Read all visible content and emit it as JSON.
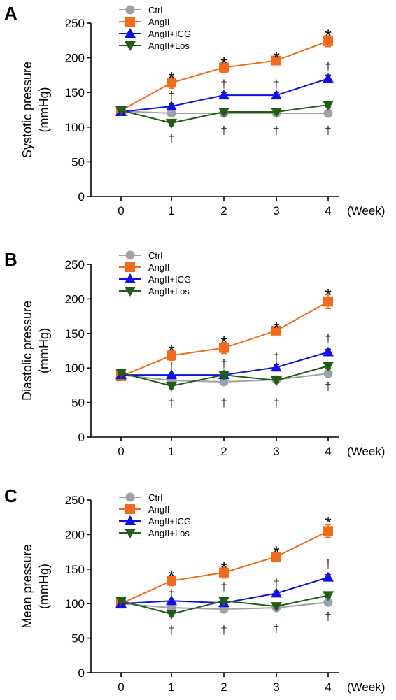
{
  "chart_data": [
    {
      "type": "line",
      "panel_label": "A",
      "xlabel": "(Week)",
      "ylabel_lines": [
        "Systotic pressure",
        "(mmHg)"
      ],
      "ylim": [
        0,
        250
      ],
      "yticks": [
        0,
        50,
        100,
        150,
        200,
        250
      ],
      "x": [
        0,
        1,
        2,
        3,
        4
      ],
      "series": [
        {
          "name": "Ctrl",
          "color": "#a0a0a8",
          "marker": "circle",
          "values": [
            123,
            120,
            120,
            120,
            120
          ],
          "error": [
            4,
            3,
            3,
            3,
            3
          ]
        },
        {
          "name": "AngII",
          "color": "#f26b1d",
          "marker": "square",
          "values": [
            124,
            164,
            186,
            196,
            224
          ],
          "error": [
            4,
            8,
            7,
            5,
            8
          ]
        },
        {
          "name": "AngII+ICG",
          "color": "#1010e8",
          "marker": "triangle-up",
          "values": [
            122,
            130,
            146,
            146,
            170
          ],
          "error": [
            3,
            4,
            4,
            4,
            5
          ]
        },
        {
          "name": "AngII+Los",
          "color": "#1f5e14",
          "marker": "triangle-down",
          "values": [
            124,
            106,
            122,
            122,
            132
          ],
          "error": [
            3,
            4,
            3,
            3,
            3
          ]
        }
      ],
      "annotations": [
        {
          "text": "*",
          "x": 1,
          "y": 177
        },
        {
          "text": "*",
          "x": 2,
          "y": 198
        },
        {
          "text": "*",
          "x": 3,
          "y": 206
        },
        {
          "text": "*",
          "x": 4,
          "y": 238
        },
        {
          "text": "†",
          "x": 1,
          "y": 146
        },
        {
          "text": "†",
          "x": 2,
          "y": 163
        },
        {
          "text": "†",
          "x": 3,
          "y": 163
        },
        {
          "text": "†",
          "x": 4,
          "y": 188
        },
        {
          "text": "†",
          "x": 1,
          "y": 84
        },
        {
          "text": "†",
          "x": 2,
          "y": 96
        },
        {
          "text": "†",
          "x": 3,
          "y": 96
        },
        {
          "text": "†",
          "x": 4,
          "y": 96
        }
      ]
    },
    {
      "type": "line",
      "panel_label": "B",
      "xlabel": "(Week)",
      "ylabel_lines": [
        "Diastolic pressure",
        "(mmHg)"
      ],
      "ylim": [
        0,
        250
      ],
      "yticks": [
        0,
        50,
        100,
        150,
        200,
        250
      ],
      "x": [
        0,
        1,
        2,
        3,
        4
      ],
      "series": [
        {
          "name": "Ctrl",
          "color": "#a0a0a8",
          "marker": "circle",
          "values": [
            90,
            82,
            80,
            83,
            92
          ],
          "error": [
            3,
            3,
            3,
            3,
            3
          ]
        },
        {
          "name": "AngII",
          "color": "#f26b1d",
          "marker": "square",
          "values": [
            88,
            118,
            129,
            154,
            196
          ],
          "error": [
            4,
            7,
            8,
            5,
            10
          ]
        },
        {
          "name": "AngII+ICG",
          "color": "#1010e8",
          "marker": "triangle-up",
          "values": [
            90,
            90,
            90,
            101,
            123
          ],
          "error": [
            3,
            3,
            3,
            4,
            4
          ]
        },
        {
          "name": "AngII+Los",
          "color": "#1f5e14",
          "marker": "triangle-down",
          "values": [
            93,
            74,
            90,
            82,
            103
          ],
          "error": [
            3,
            4,
            3,
            3,
            3
          ]
        }
      ],
      "annotations": [
        {
          "text": "*",
          "x": 1,
          "y": 131
        },
        {
          "text": "*",
          "x": 2,
          "y": 143
        },
        {
          "text": "*",
          "x": 3,
          "y": 164
        },
        {
          "text": "*",
          "x": 4,
          "y": 212
        },
        {
          "text": "†",
          "x": 1,
          "y": 103
        },
        {
          "text": "†",
          "x": 2,
          "y": 107
        },
        {
          "text": "†",
          "x": 3,
          "y": 117
        },
        {
          "text": "†",
          "x": 4,
          "y": 143
        },
        {
          "text": "†",
          "x": 1,
          "y": 50
        },
        {
          "text": "†",
          "x": 2,
          "y": 50
        },
        {
          "text": "†",
          "x": 3,
          "y": 50
        },
        {
          "text": "†",
          "x": 4,
          "y": 74
        }
      ]
    },
    {
      "type": "line",
      "panel_label": "C",
      "xlabel": "(Week)",
      "ylabel_lines": [
        "Mean pressure",
        "(mmHg)"
      ],
      "ylim": [
        0,
        250
      ],
      "yticks": [
        0,
        50,
        100,
        150,
        200,
        250
      ],
      "x": [
        0,
        1,
        2,
        3,
        4
      ],
      "series": [
        {
          "name": "Ctrl",
          "color": "#a0a0a8",
          "marker": "circle",
          "values": [
            100,
            94,
            92,
            94,
            102
          ],
          "error": [
            3,
            3,
            3,
            3,
            3
          ]
        },
        {
          "name": "AngII",
          "color": "#f26b1d",
          "marker": "square",
          "values": [
            100,
            133,
            145,
            168,
            205
          ],
          "error": [
            4,
            7,
            8,
            5,
            9
          ]
        },
        {
          "name": "AngII+ICG",
          "color": "#1010e8",
          "marker": "triangle-up",
          "values": [
            100,
            104,
            101,
            115,
            138
          ],
          "error": [
            3,
            3,
            3,
            3,
            4
          ]
        },
        {
          "name": "AngII+Los",
          "color": "#1f5e14",
          "marker": "triangle-down",
          "values": [
            104,
            85,
            104,
            96,
            112
          ],
          "error": [
            3,
            4,
            3,
            3,
            3
          ]
        }
      ],
      "annotations": [
        {
          "text": "*",
          "x": 1,
          "y": 146
        },
        {
          "text": "*",
          "x": 2,
          "y": 158
        },
        {
          "text": "*",
          "x": 3,
          "y": 180
        },
        {
          "text": "*",
          "x": 4,
          "y": 223
        },
        {
          "text": "†",
          "x": 1,
          "y": 115
        },
        {
          "text": "†",
          "x": 2,
          "y": 125
        },
        {
          "text": "†",
          "x": 3,
          "y": 130
        },
        {
          "text": "†",
          "x": 4,
          "y": 158
        },
        {
          "text": "†",
          "x": 1,
          "y": 62
        },
        {
          "text": "†",
          "x": 2,
          "y": 62
        },
        {
          "text": "†",
          "x": 3,
          "y": 65
        },
        {
          "text": "†",
          "x": 4,
          "y": 82
        }
      ]
    }
  ]
}
